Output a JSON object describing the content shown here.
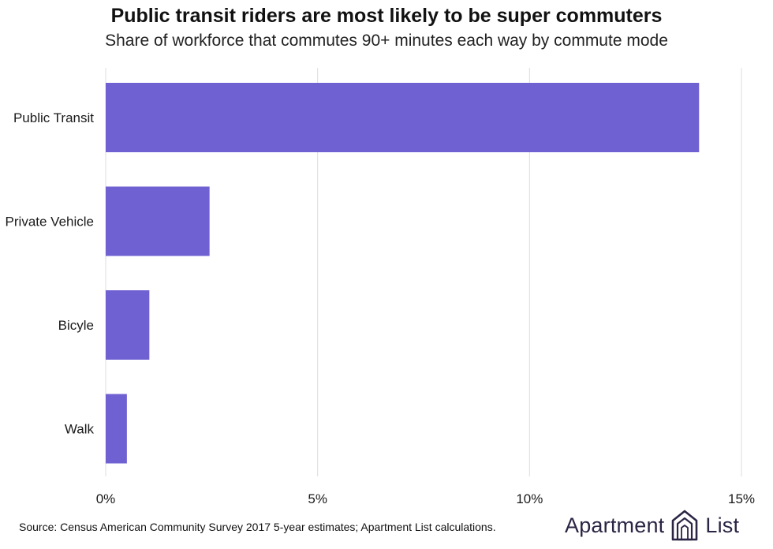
{
  "title": "Public transit riders are most likely to be super commuters",
  "subtitle": "Share of workforce that commutes 90+ minutes each way by commute mode",
  "source": "Source: Census American Community Survey 2017 5-year estimates; Apartment List calculations.",
  "brand": {
    "word1": "Apartment",
    "word2": "List",
    "icon": "apartment-list-logo-icon"
  },
  "colors": {
    "bar": "#6f61d2",
    "grid": "#dddddd",
    "text": "#1a1a1a"
  },
  "chart_data": {
    "type": "bar",
    "orientation": "horizontal",
    "categories": [
      "Public Transit",
      "Private Vehicle",
      "Bicyle",
      "Walk"
    ],
    "values": [
      14.0,
      2.45,
      1.03,
      0.5
    ],
    "unit": "%",
    "xlim": [
      0,
      15
    ],
    "xticks": [
      0,
      5,
      10,
      15
    ],
    "xtick_labels": [
      "0%",
      "5%",
      "10%",
      "15%"
    ],
    "grid": "vertical",
    "legend": "none",
    "xlabel": "",
    "ylabel": ""
  }
}
